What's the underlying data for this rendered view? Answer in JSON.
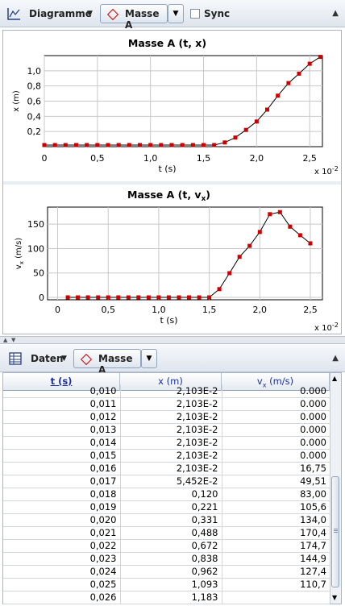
{
  "top_toolbar": {
    "view_label": "Diagramme",
    "object_label": "Masse A",
    "sync_label": "Sync",
    "sync_checked": false
  },
  "icons": {
    "chart": "line-chart-icon",
    "table": "table-icon",
    "object": "red-diamond-icon",
    "dropdown": "triangle-down-icon",
    "collapse": "triangle-up-icon",
    "colors": {
      "marker": "#cc0000",
      "accent": "#1b2fa0"
    }
  },
  "bottom_toolbar": {
    "view_label": "Daten",
    "object_label": "Masse A"
  },
  "chart_data": [
    {
      "type": "line",
      "title": "Masse A (t, x)",
      "xlabel": "t (s)",
      "ylabel": "x (m)",
      "x_multiplier": "x 10",
      "x_multiplier_exp": "-2",
      "xlim": [
        0,
        2.62
      ],
      "ylim": [
        0,
        1.2
      ],
      "xticks": [
        0,
        0.5,
        1.0,
        1.5,
        2.0,
        2.5
      ],
      "xtick_labels": [
        "0",
        "0,5",
        "1,0",
        "1,5",
        "2,0",
        "2,5"
      ],
      "yticks": [
        0.2,
        0.4,
        0.6,
        0.8,
        1.0
      ],
      "ytick_labels": [
        "0,2",
        "0,4",
        "0,6",
        "0,8",
        "1,0"
      ],
      "grid": true,
      "marker_color": "#cc0000",
      "x": [
        0,
        0.1,
        0.2,
        0.3,
        0.4,
        0.5,
        0.6,
        0.7,
        0.8,
        0.9,
        1.0,
        1.1,
        1.2,
        1.3,
        1.4,
        1.5,
        1.6,
        1.7,
        1.8,
        1.9,
        2.0,
        2.1,
        2.2,
        2.3,
        2.4,
        2.5,
        2.6
      ],
      "y": [
        0.021,
        0.021,
        0.021,
        0.021,
        0.021,
        0.021,
        0.021,
        0.021,
        0.021,
        0.021,
        0.021,
        0.021,
        0.021,
        0.021,
        0.021,
        0.021,
        0.021,
        0.055,
        0.12,
        0.221,
        0.331,
        0.488,
        0.672,
        0.838,
        0.962,
        1.093,
        1.183
      ]
    },
    {
      "type": "line",
      "title": "Masse A (t, v",
      "title_sub": "x",
      "title_end": ")",
      "xlabel": "t (s)",
      "ylabel": "v",
      "ylabel_sub": "x",
      "ylabel_end": " (m/s)",
      "x_multiplier": "x 10",
      "x_multiplier_exp": "-2",
      "xlim": [
        -0.1,
        2.62
      ],
      "ylim": [
        -5,
        185
      ],
      "xticks": [
        0,
        0.5,
        1.0,
        1.5,
        2.0,
        2.5
      ],
      "xtick_labels": [
        "0",
        "0,5",
        "1,0",
        "1,5",
        "2,0",
        "2,5"
      ],
      "yticks": [
        0,
        50,
        100,
        150
      ],
      "ytick_labels": [
        "0",
        "50",
        "100",
        "150"
      ],
      "grid": true,
      "marker_color": "#cc0000",
      "x": [
        0.1,
        0.2,
        0.3,
        0.4,
        0.5,
        0.6,
        0.7,
        0.8,
        0.9,
        1.0,
        1.1,
        1.2,
        1.3,
        1.4,
        1.5,
        1.6,
        1.7,
        1.8,
        1.9,
        2.0,
        2.1,
        2.2,
        2.3,
        2.4,
        2.5
      ],
      "y": [
        0,
        0,
        0,
        0,
        0,
        0,
        0,
        0,
        0,
        0,
        0,
        0,
        0,
        0,
        0,
        16.75,
        49.51,
        83.0,
        105.6,
        134.0,
        170.4,
        174.7,
        144.9,
        127.4,
        110.7
      ]
    }
  ],
  "table": {
    "headers": [
      "t (s)",
      "x (m)",
      "v"
    ],
    "v_header_sub": "x",
    "v_header_end": " (m/s)",
    "partial_row": [
      "0,010",
      "2,103E-2",
      "0.000"
    ],
    "rows": [
      [
        "0,011",
        "2,103E-2",
        "0.000"
      ],
      [
        "0,012",
        "2,103E-2",
        "0.000"
      ],
      [
        "0,013",
        "2,103E-2",
        "0.000"
      ],
      [
        "0,014",
        "2,103E-2",
        "0.000"
      ],
      [
        "0,015",
        "2,103E-2",
        "0.000"
      ],
      [
        "0,016",
        "2,103E-2",
        "16,75"
      ],
      [
        "0,017",
        "5,452E-2",
        "49,51"
      ],
      [
        "0,018",
        "0,120",
        "83,00"
      ],
      [
        "0,019",
        "0,221",
        "105,6"
      ],
      [
        "0,020",
        "0,331",
        "134,0"
      ],
      [
        "0,021",
        "0,488",
        "170,4"
      ],
      [
        "0,022",
        "0,672",
        "174,7"
      ],
      [
        "0,023",
        "0,838",
        "144,9"
      ],
      [
        "0,024",
        "0,962",
        "127,4"
      ],
      [
        "0,025",
        "1,093",
        "110,7"
      ],
      [
        "0,026",
        "1,183",
        ""
      ]
    ]
  }
}
